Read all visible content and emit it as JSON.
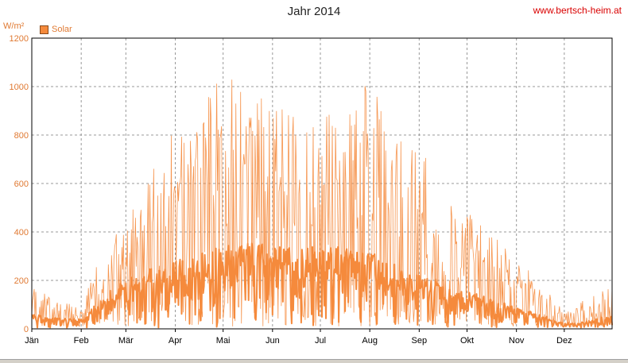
{
  "chart_data": {
    "type": "line",
    "title": "Jahr 2014",
    "ylabel": "W/m²",
    "website": "www.bertsch-heim.at",
    "ylim": [
      0,
      1200
    ],
    "yticks": [
      0,
      200,
      400,
      600,
      800,
      1000,
      1200
    ],
    "months": [
      "Jän",
      "Feb",
      "Mär",
      "Apr",
      "Mai",
      "Jun",
      "Jul",
      "Aug",
      "Sep",
      "Okt",
      "Nov",
      "Dez"
    ],
    "x_unit": "day of year",
    "grid": true,
    "legend": "top-left",
    "colors": {
      "series": "#f58a3c",
      "grid": "#999999",
      "axis": "#000000"
    },
    "series": [
      {
        "name": "Solar",
        "x": [
          1,
          15,
          32,
          46,
          60,
          74,
          91,
          105,
          121,
          135,
          152,
          166,
          182,
          196,
          213,
          227,
          244,
          258,
          274,
          288,
          305,
          319,
          335,
          349,
          365
        ],
        "peak": [
          180,
          120,
          90,
          350,
          450,
          620,
          850,
          900,
          1050,
          1090,
          950,
          900,
          900,
          870,
          1050,
          850,
          780,
          590,
          500,
          420,
          280,
          210,
          70,
          140,
          190
        ],
        "mean": [
          60,
          40,
          35,
          120,
          180,
          220,
          260,
          270,
          300,
          310,
          300,
          290,
          300,
          300,
          280,
          240,
          200,
          170,
          140,
          110,
          80,
          55,
          20,
          30,
          50
        ]
      }
    ]
  }
}
